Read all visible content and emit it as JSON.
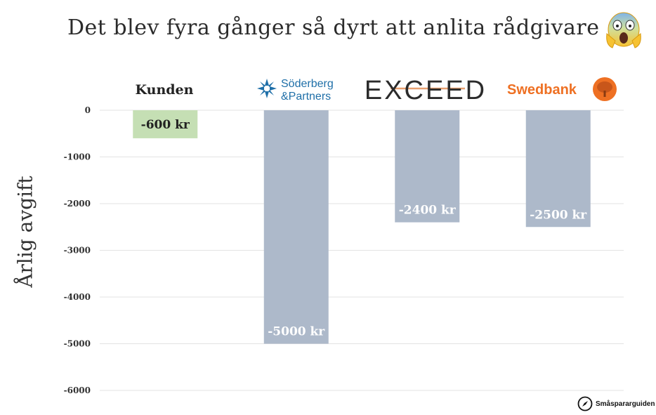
{
  "title": "Det blev fyra gånger så dyrt att anlita rådgivare",
  "watermark": "Småspararguiden",
  "chart_data": {
    "type": "bar",
    "title": "Det blev fyra gånger så dyrt att anlita rådgivare",
    "ylabel": "Årlig avgift",
    "xlabel": "",
    "ylim": [
      -6000,
      0
    ],
    "yticks": [
      0,
      -1000,
      -2000,
      -3000,
      -4000,
      -5000,
      -6000
    ],
    "grid": true,
    "categories": [
      "Kunden",
      "Söderberg & Partners",
      "EXCEED",
      "Swedbank"
    ],
    "values": [
      -600,
      -5000,
      -2400,
      -2500
    ],
    "data_labels": [
      "-600 kr",
      "-5000 kr",
      "-2400 kr",
      "-2500 kr"
    ],
    "bar_colors": [
      "#c5dfb4",
      "#adb9ca",
      "#adb9ca",
      "#adb9ca"
    ],
    "label_colors": [
      "#222222",
      "#ffffff",
      "#ffffff",
      "#ffffff"
    ]
  },
  "logos": {
    "kunden": "Kunden",
    "soderberg_line1": "Söderberg",
    "soderberg_line2": "&Partners",
    "exceed": "EXCEED",
    "swedbank": "Swedbank"
  },
  "colors": {
    "soderberg_blue": "#1f6fa8",
    "exceed_dark": "#2b2b2b",
    "exceed_accent": "#e8a070",
    "swedbank_orange": "#ee7023",
    "swedbank_tree": "#c8561a"
  },
  "icons": [
    "scream-emoji-icon",
    "soderberg-logo-icon",
    "swedbank-tree-icon",
    "compass-icon"
  ]
}
